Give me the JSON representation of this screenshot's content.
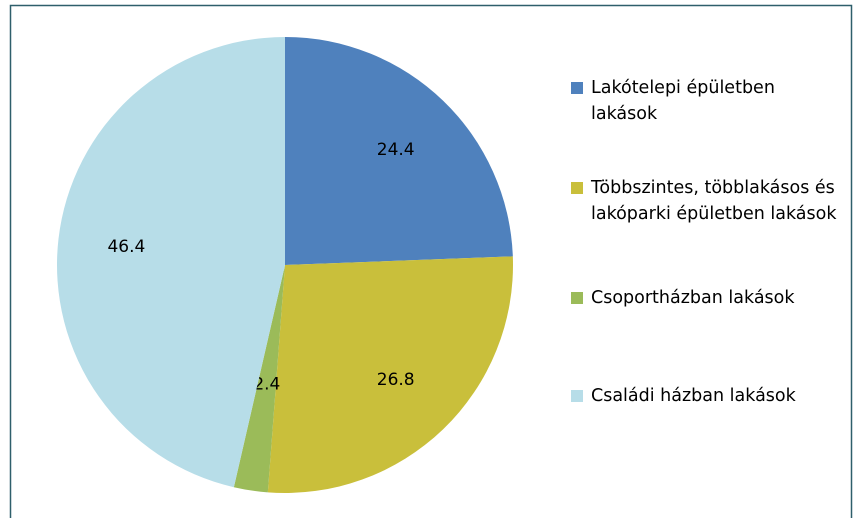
{
  "chart_data": {
    "type": "pie",
    "categories": [
      "Lakótelepi épületben lakások",
      "Többszintes, többlakásos és lakóparki épületben lakások",
      "Csoportházban lakások",
      "Családi házban lakások"
    ],
    "values": [
      24.4,
      26.8,
      2.4,
      46.4
    ],
    "colors": [
      "#4f81bd",
      "#c9bf3b",
      "#9bbb59",
      "#b7dde8"
    ]
  }
}
